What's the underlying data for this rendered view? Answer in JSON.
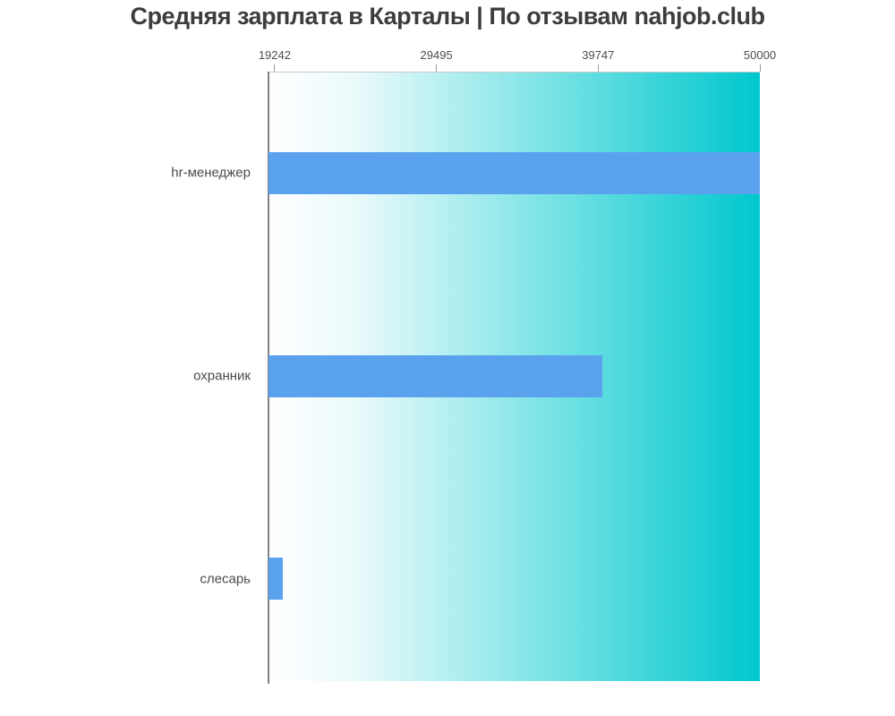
{
  "page": {
    "title": "Средняя зарплата в Карталы | По отзывам nahjob.club"
  },
  "chart_data": {
    "type": "bar",
    "orientation": "horizontal",
    "title": "Средняя зарплата в Карталы | По отзывам nahjob.club",
    "categories": [
      "hr-менеджер",
      "охранник",
      "слесарь"
    ],
    "values": [
      50000,
      40000,
      19242
    ],
    "x_ticks": [
      19242,
      29495,
      39747,
      50000
    ],
    "xlim": [
      18850,
      50000
    ],
    "xlabel": "",
    "ylabel": "",
    "grid": false,
    "legend": false,
    "axis_position": "top",
    "colors": {
      "bar": "#5ba2ee",
      "plot_background_gradient_start": "#ffffff",
      "plot_background_gradient_end": "#00c8ce",
      "title_text": "#3d3d3d",
      "tick_text": "#4d4d4d",
      "category_text": "#4a4a4a",
      "axis_line": "#828282",
      "tick_mark": "#9a9a9a",
      "plot_border_top": "#c9c9c9"
    }
  }
}
